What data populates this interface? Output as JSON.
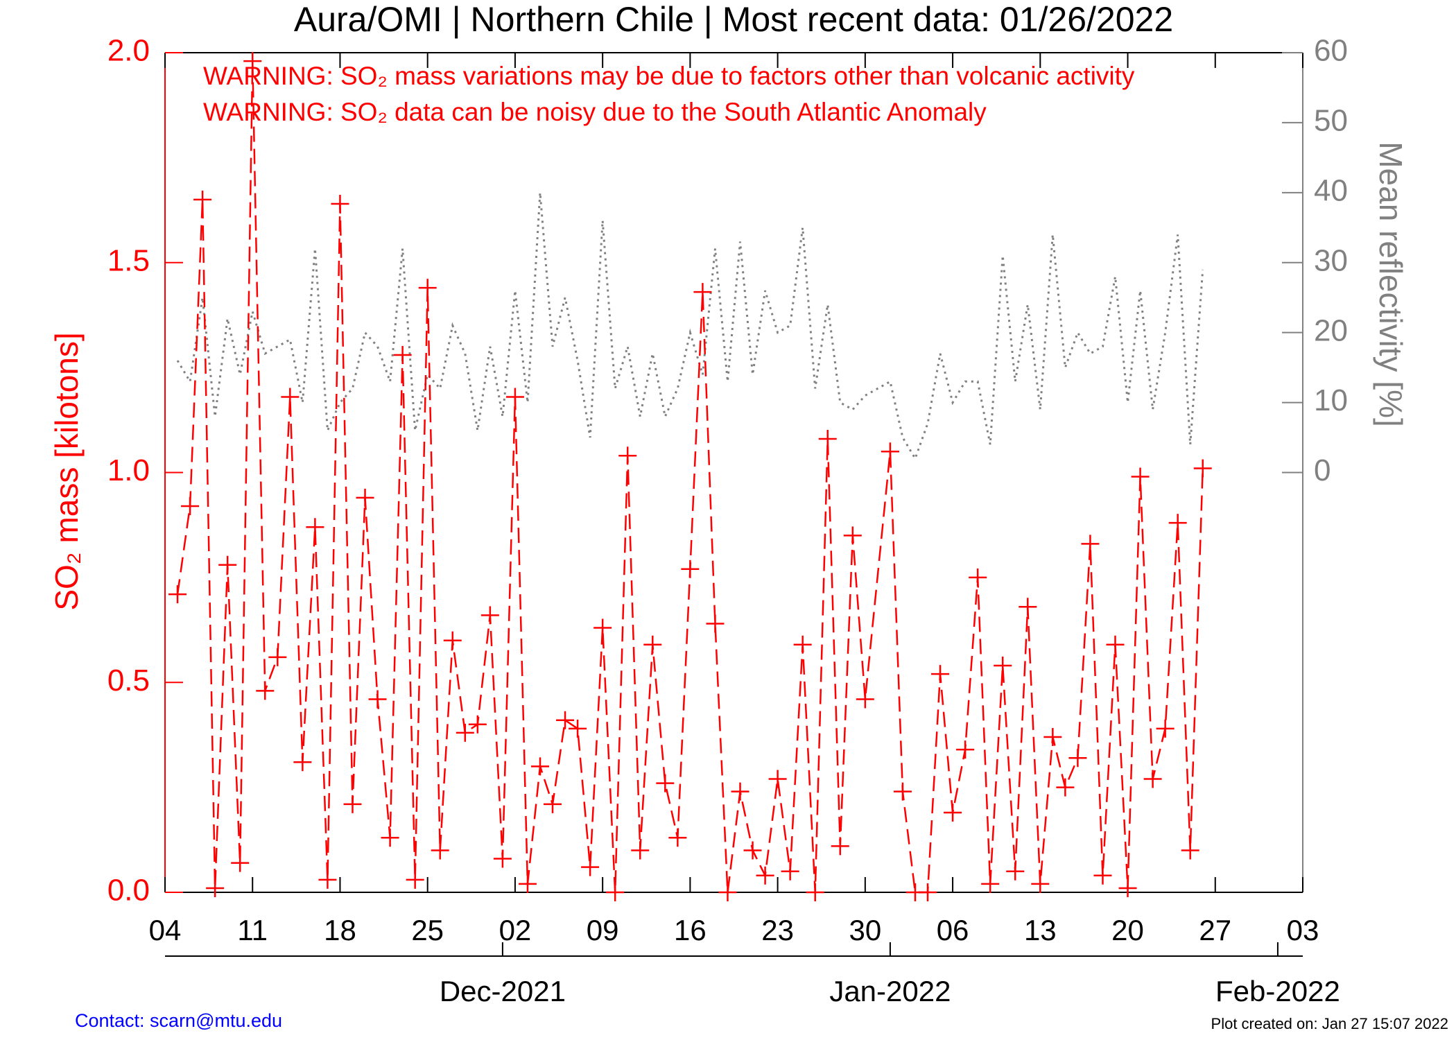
{
  "chart_data": {
    "type": "line",
    "title": "Aura/OMI | Northern Chile | Most recent data: 01/26/2022",
    "annotations": [
      "WARNING: SO₂ mass variations may be due to factors other than volcanic activity",
      "WARNING: SO₂ data can be noisy due to the South Atlantic Anomaly"
    ],
    "y_label": "SO₂ mass [kilotons]",
    "y2_label": "Mean reflectivity [%]",
    "footer_left": "Contact: scarn@mtu.edu",
    "footer_right": "Plot created on: Jan 27 15:07 2022",
    "x": [
      "2021-11-05",
      "2021-11-06",
      "2021-11-07",
      "2021-11-08",
      "2021-11-09",
      "2021-11-10",
      "2021-11-11",
      "2021-11-12",
      "2021-11-13",
      "2021-11-14",
      "2021-11-15",
      "2021-11-16",
      "2021-11-17",
      "2021-11-18",
      "2021-11-19",
      "2021-11-20",
      "2021-11-21",
      "2021-11-22",
      "2021-11-23",
      "2021-11-24",
      "2021-11-25",
      "2021-11-26",
      "2021-11-27",
      "2021-11-28",
      "2021-11-29",
      "2021-11-30",
      "2021-12-01",
      "2021-12-02",
      "2021-12-03",
      "2021-12-04",
      "2021-12-05",
      "2021-12-06",
      "2021-12-07",
      "2021-12-08",
      "2021-12-09",
      "2021-12-10",
      "2021-12-11",
      "2021-12-12",
      "2021-12-13",
      "2021-12-14",
      "2021-12-15",
      "2021-12-16",
      "2021-12-17",
      "2021-12-18",
      "2021-12-19",
      "2021-12-20",
      "2021-12-21",
      "2021-12-22",
      "2021-12-23",
      "2021-12-24",
      "2021-12-25",
      "2021-12-26",
      "2021-12-27",
      "2021-12-28",
      "2021-12-29",
      "2021-12-30",
      "2022-01-01",
      "2022-01-02",
      "2022-01-03",
      "2022-01-04",
      "2022-01-05",
      "2022-01-06",
      "2022-01-07",
      "2022-01-08",
      "2022-01-09",
      "2022-01-10",
      "2022-01-11",
      "2022-01-12",
      "2022-01-13",
      "2022-01-14",
      "2022-01-15",
      "2022-01-16",
      "2022-01-17",
      "2022-01-18",
      "2022-01-19",
      "2022-01-20",
      "2022-01-21",
      "2022-01-22",
      "2022-01-23",
      "2022-01-24",
      "2022-01-25",
      "2022-01-26"
    ],
    "series": [
      {
        "name": "SO₂ mass",
        "color": "#ff0000",
        "axis": "y",
        "values": [
          0.71,
          0.92,
          1.65,
          0.01,
          0.78,
          0.07,
          1.98,
          0.48,
          0.56,
          1.18,
          0.31,
          0.87,
          0.03,
          1.64,
          0.21,
          0.94,
          0.46,
          0.13,
          1.28,
          0.03,
          1.44,
          0.1,
          0.6,
          0.38,
          0.4,
          0.66,
          0.08,
          1.18,
          0.02,
          0.3,
          0.21,
          0.41,
          0.39,
          0.06,
          0.63,
          0.0,
          1.04,
          0.1,
          0.59,
          0.26,
          0.13,
          0.77,
          1.43,
          0.64,
          0.0,
          0.24,
          0.1,
          0.04,
          0.27,
          0.05,
          0.59,
          0.0,
          1.08,
          0.11,
          0.85,
          0.46,
          1.05,
          0.24,
          0.0,
          0.0,
          0.52,
          0.19,
          0.34,
          0.75,
          0.02,
          0.54,
          0.05,
          0.68,
          0.02,
          0.37,
          0.25,
          0.32,
          0.83,
          0.04,
          0.59,
          0.01,
          0.99,
          0.27,
          0.39,
          0.88,
          0.1,
          1.01
        ]
      },
      {
        "name": "Mean reflectivity",
        "color": "#808080",
        "axis": "y2",
        "values": [
          16,
          13,
          25,
          8,
          22,
          14,
          23,
          17,
          18,
          19,
          10,
          32,
          6,
          10,
          12,
          20,
          18,
          13,
          32,
          6,
          14,
          12,
          21,
          17,
          6,
          18,
          8,
          26,
          10,
          40,
          18,
          25,
          16,
          5,
          36,
          12,
          18,
          8,
          17,
          8,
          12,
          20,
          14,
          32,
          13,
          33,
          14,
          26,
          20,
          21,
          35,
          12,
          24,
          10,
          9,
          11,
          13,
          5,
          2,
          7,
          17,
          10,
          13,
          13,
          4,
          31,
          13,
          24,
          9,
          34,
          15,
          20,
          17,
          18,
          28,
          10,
          26,
          9,
          20,
          34,
          4,
          29
        ]
      }
    ],
    "xlim": [
      "2021-11-04",
      "2022-02-03"
    ],
    "xticks": [
      {
        "value": "2021-11-04",
        "label": "04"
      },
      {
        "value": "2021-11-11",
        "label": "11"
      },
      {
        "value": "2021-11-18",
        "label": "18"
      },
      {
        "value": "2021-11-25",
        "label": "25"
      },
      {
        "value": "2021-12-02",
        "label": "02"
      },
      {
        "value": "2021-12-09",
        "label": "09"
      },
      {
        "value": "2021-12-16",
        "label": "16"
      },
      {
        "value": "2021-12-23",
        "label": "23"
      },
      {
        "value": "2021-12-30",
        "label": "30"
      },
      {
        "value": "2022-01-06",
        "label": "06"
      },
      {
        "value": "2022-01-13",
        "label": "13"
      },
      {
        "value": "2022-01-20",
        "label": "20"
      },
      {
        "value": "2022-01-27",
        "label": "27"
      },
      {
        "value": "2022-02-03",
        "label": "03"
      }
    ],
    "month_ticks": [
      {
        "value": "2021-12-01",
        "label": "Dec-2021"
      },
      {
        "value": "2022-01-01",
        "label": "Jan-2022"
      },
      {
        "value": "2022-02-01",
        "label": "Feb-2022"
      }
    ],
    "ylim": [
      0,
      2.0
    ],
    "yticks": [
      {
        "value": 0,
        "label": "0.0"
      },
      {
        "value": 0.5,
        "label": "0.5"
      },
      {
        "value": 1,
        "label": "1.0"
      },
      {
        "value": 1.5,
        "label": "1.5"
      },
      {
        "value": 2,
        "label": "2.0"
      }
    ],
    "y2lim": [
      -60,
      60
    ],
    "y2ticks": [
      0,
      10,
      20,
      30,
      40,
      50,
      60
    ]
  }
}
